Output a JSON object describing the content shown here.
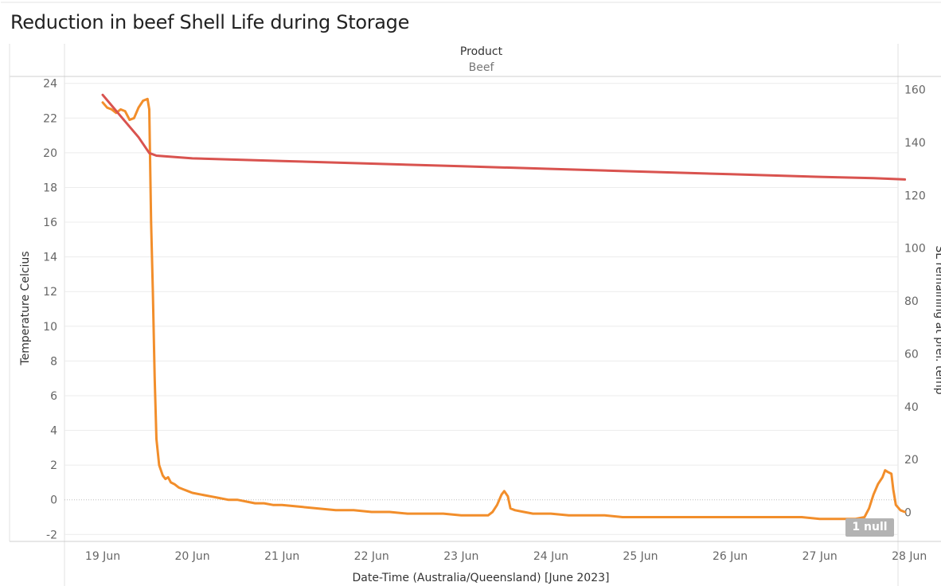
{
  "title": "Reduction in beef Shell Life during Storage",
  "header": {
    "column_label": "Product",
    "column_value": "Beef"
  },
  "null_indicator": "1 null",
  "colors": {
    "temperature": "#f28e2b",
    "shelf_life": "#d9534f",
    "grid": "#ececec",
    "zero_line": "#bdbdbd"
  },
  "chart_data": {
    "type": "line",
    "xlabel": "Date-Time (Australia/Queensland) [June 2023]",
    "ylabel_left": "Temperature Celcius",
    "ylabel_right": "SL remaining at pref. temp",
    "x_ticks": [
      "19 Jun",
      "20 Jun",
      "21 Jun",
      "22 Jun",
      "23 Jun",
      "24 Jun",
      "25 Jun",
      "26 Jun",
      "27 Jun",
      "28 Jun"
    ],
    "xlim": [
      19,
      28.3
    ],
    "ylim_left": [
      -2.4,
      24.4
    ],
    "ylim_right": [
      -11,
      165
    ],
    "y_ticks_left": [
      24,
      22,
      20,
      18,
      16,
      14,
      12,
      10,
      8,
      6,
      4,
      2,
      0,
      -2
    ],
    "y_ticks_right": [
      160,
      140,
      120,
      100,
      80,
      60,
      40,
      20,
      0
    ],
    "series": [
      {
        "axis": "left",
        "color": "#f28e2b",
        "points": [
          [
            19.0,
            22.9
          ],
          [
            19.05,
            22.6
          ],
          [
            19.1,
            22.5
          ],
          [
            19.15,
            22.3
          ],
          [
            19.2,
            22.5
          ],
          [
            19.25,
            22.4
          ],
          [
            19.3,
            21.9
          ],
          [
            19.35,
            22.0
          ],
          [
            19.4,
            22.6
          ],
          [
            19.45,
            23.0
          ],
          [
            19.5,
            23.1
          ],
          [
            19.52,
            22.5
          ],
          [
            19.54,
            16.0
          ],
          [
            19.56,
            12.0
          ],
          [
            19.58,
            7.0
          ],
          [
            19.6,
            3.5
          ],
          [
            19.63,
            2.0
          ],
          [
            19.67,
            1.4
          ],
          [
            19.7,
            1.2
          ],
          [
            19.73,
            1.3
          ],
          [
            19.76,
            1.0
          ],
          [
            19.8,
            0.9
          ],
          [
            19.85,
            0.7
          ],
          [
            19.9,
            0.6
          ],
          [
            19.95,
            0.5
          ],
          [
            20.0,
            0.4
          ],
          [
            20.1,
            0.3
          ],
          [
            20.2,
            0.2
          ],
          [
            20.3,
            0.1
          ],
          [
            20.4,
            0.0
          ],
          [
            20.5,
            0.0
          ],
          [
            20.6,
            -0.1
          ],
          [
            20.7,
            -0.2
          ],
          [
            20.8,
            -0.2
          ],
          [
            20.9,
            -0.3
          ],
          [
            21.0,
            -0.3
          ],
          [
            21.2,
            -0.4
          ],
          [
            21.4,
            -0.5
          ],
          [
            21.6,
            -0.6
          ],
          [
            21.8,
            -0.6
          ],
          [
            22.0,
            -0.7
          ],
          [
            22.2,
            -0.7
          ],
          [
            22.4,
            -0.8
          ],
          [
            22.6,
            -0.8
          ],
          [
            22.8,
            -0.8
          ],
          [
            23.0,
            -0.9
          ],
          [
            23.2,
            -0.9
          ],
          [
            23.3,
            -0.9
          ],
          [
            23.35,
            -0.7
          ],
          [
            23.4,
            -0.3
          ],
          [
            23.45,
            0.3
          ],
          [
            23.48,
            0.5
          ],
          [
            23.52,
            0.2
          ],
          [
            23.55,
            -0.5
          ],
          [
            23.6,
            -0.6
          ],
          [
            23.7,
            -0.7
          ],
          [
            23.8,
            -0.8
          ],
          [
            24.0,
            -0.8
          ],
          [
            24.2,
            -0.9
          ],
          [
            24.4,
            -0.9
          ],
          [
            24.6,
            -0.9
          ],
          [
            24.8,
            -1.0
          ],
          [
            25.0,
            -1.0
          ],
          [
            25.2,
            -1.0
          ],
          [
            25.4,
            -1.0
          ],
          [
            25.6,
            -1.0
          ],
          [
            25.8,
            -1.0
          ],
          [
            26.0,
            -1.0
          ],
          [
            26.2,
            -1.0
          ],
          [
            26.4,
            -1.0
          ],
          [
            26.6,
            -1.0
          ],
          [
            26.8,
            -1.0
          ],
          [
            27.0,
            -1.1
          ],
          [
            27.2,
            -1.1
          ],
          [
            27.4,
            -1.1
          ],
          [
            27.5,
            -1.0
          ],
          [
            27.55,
            -0.5
          ],
          [
            27.6,
            0.3
          ],
          [
            27.65,
            0.9
          ],
          [
            27.7,
            1.3
          ],
          [
            27.73,
            1.7
          ],
          [
            27.76,
            1.6
          ],
          [
            27.8,
            1.5
          ],
          [
            27.82,
            0.6
          ],
          [
            27.85,
            -0.3
          ],
          [
            27.9,
            -0.6
          ],
          [
            27.95,
            -0.7
          ]
        ]
      },
      {
        "axis": "right",
        "color": "#d9534f",
        "points": [
          [
            19.0,
            158
          ],
          [
            19.2,
            150
          ],
          [
            19.4,
            142
          ],
          [
            19.52,
            136
          ],
          [
            19.6,
            135
          ],
          [
            20.0,
            134
          ],
          [
            21.0,
            133
          ],
          [
            22.0,
            132
          ],
          [
            23.0,
            131
          ],
          [
            24.0,
            130
          ],
          [
            25.0,
            129
          ],
          [
            26.0,
            128
          ],
          [
            27.0,
            127
          ],
          [
            27.6,
            126.5
          ],
          [
            27.95,
            126
          ]
        ]
      }
    ]
  }
}
